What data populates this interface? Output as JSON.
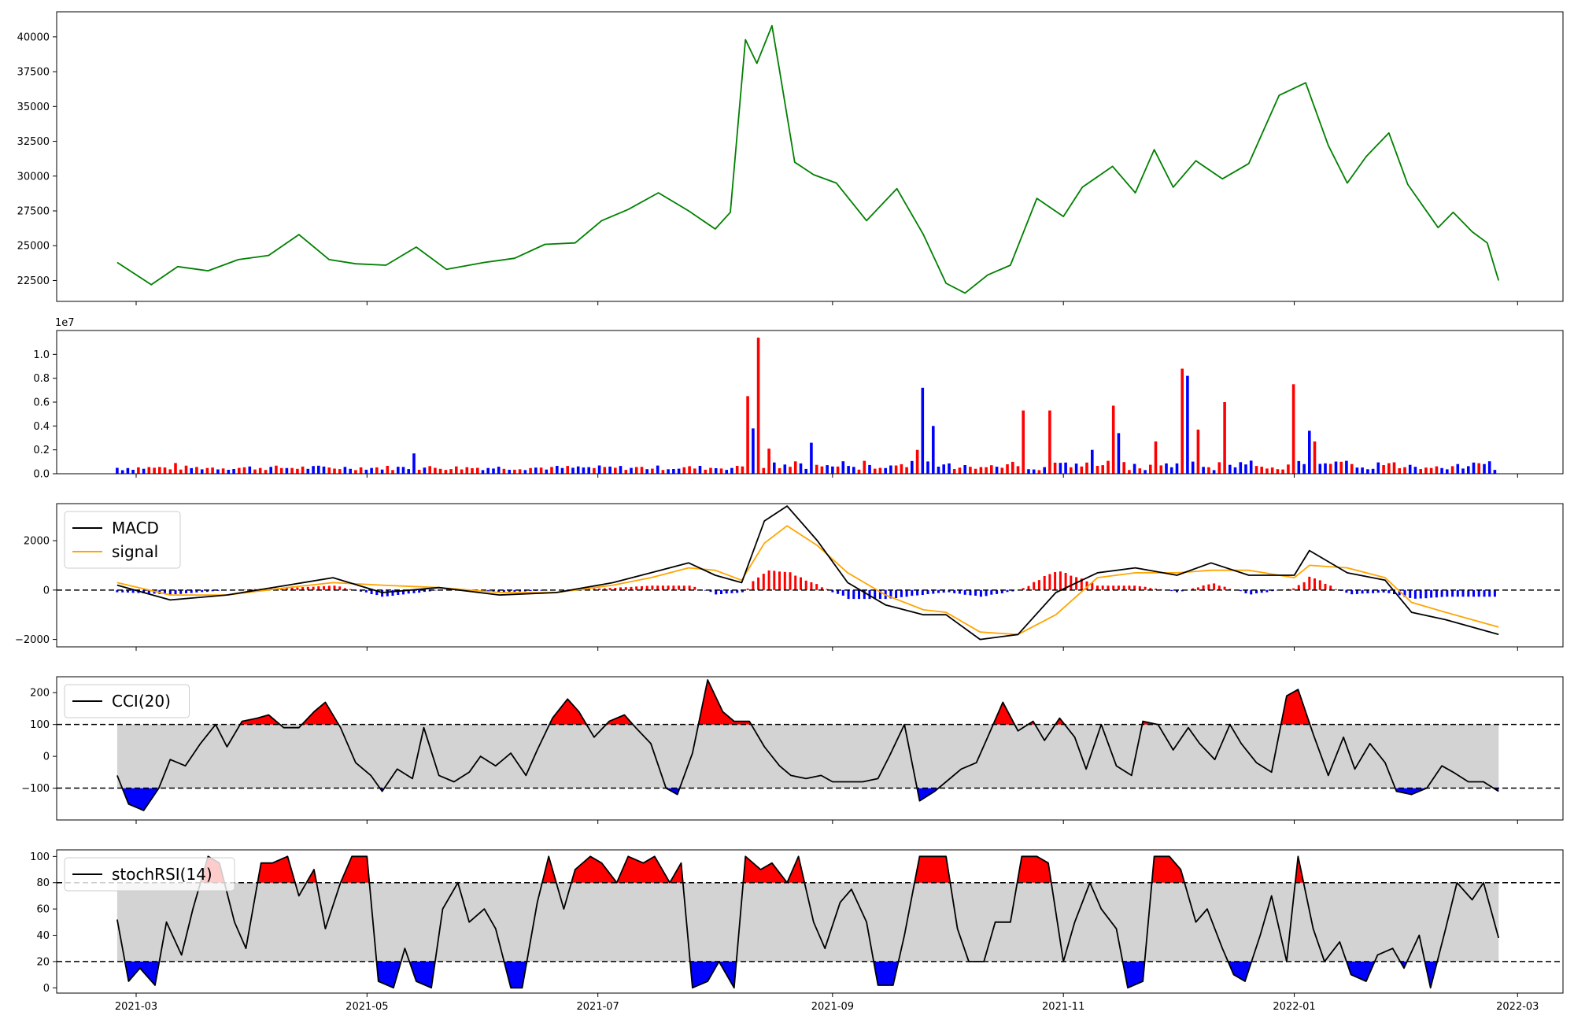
{
  "chart_data": [
    {
      "panel": "price",
      "type": "line",
      "color": "#008000",
      "ylim": [
        21000,
        41800
      ],
      "yticks": [
        22500,
        25000,
        27500,
        30000,
        32500,
        35000,
        37500,
        40000
      ],
      "ytick_labels": [
        "22500",
        "25000",
        "27500",
        "30000",
        "32500",
        "35000",
        "37500",
        "40000"
      ],
      "x": [
        "2021-02-24",
        "2021-03-05",
        "2021-03-12",
        "2021-03-20",
        "2021-03-28",
        "2021-04-05",
        "2021-04-13",
        "2021-04-21",
        "2021-04-28",
        "2021-05-06",
        "2021-05-14",
        "2021-05-22",
        "2021-06-01",
        "2021-06-09",
        "2021-06-17",
        "2021-06-25",
        "2021-07-02",
        "2021-07-09",
        "2021-07-17",
        "2021-07-25",
        "2021-08-01",
        "2021-08-05",
        "2021-08-09",
        "2021-08-12",
        "2021-08-16",
        "2021-08-18",
        "2021-08-22",
        "2021-08-27",
        "2021-09-02",
        "2021-09-10",
        "2021-09-18",
        "2021-09-25",
        "2021-10-01",
        "2021-10-06",
        "2021-10-12",
        "2021-10-18",
        "2021-10-25",
        "2021-11-01",
        "2021-11-06",
        "2021-11-14",
        "2021-11-20",
        "2021-11-25",
        "2021-11-30",
        "2021-12-06",
        "2021-12-13",
        "2021-12-20",
        "2021-12-28",
        "2022-01-04",
        "2022-01-10",
        "2022-01-15",
        "2022-01-20",
        "2022-01-26",
        "2022-01-31",
        "2022-02-08",
        "2022-02-12",
        "2022-02-17",
        "2022-02-21",
        "2022-02-24"
      ],
      "values": [
        23800,
        22200,
        23500,
        23200,
        24000,
        24300,
        25800,
        24000,
        23700,
        23600,
        24900,
        23300,
        23800,
        24100,
        25100,
        25200,
        26800,
        27600,
        28800,
        27500,
        26200,
        27400,
        39800,
        38100,
        40800,
        37600,
        31000,
        30100,
        29500,
        26800,
        29100,
        25800,
        22300,
        21600,
        22900,
        23600,
        28400,
        27100,
        29200,
        30700,
        28800,
        31900,
        29200,
        31100,
        29800,
        30900,
        35800,
        36700,
        32200,
        29500,
        31400,
        33100,
        29400,
        26300,
        27400,
        26000,
        25200,
        22500
      ],
      "legend": []
    },
    {
      "panel": "volume",
      "type": "bar",
      "offset_label": "1e7",
      "ylim": [
        0,
        1.2
      ],
      "yticks": [
        0,
        0.2,
        0.4,
        0.6,
        0.8,
        1.0
      ],
      "ytick_labels": [
        "0.0",
        "0.2",
        "0.4",
        "0.6",
        "0.8",
        "1.0"
      ],
      "up_color": "#ff0000",
      "down_color": "#0000ff",
      "highlights": [
        {
          "x": "2021-02-26",
          "value": 0.03,
          "dir": "down"
        },
        {
          "x": "2021-03-12",
          "value": 0.09,
          "dir": "up"
        },
        {
          "x": "2021-05-13",
          "value": 0.17,
          "dir": "down"
        },
        {
          "x": "2021-08-09",
          "value": 0.65,
          "dir": "up"
        },
        {
          "x": "2021-08-11",
          "value": 0.38,
          "dir": "down"
        },
        {
          "x": "2021-08-13",
          "value": 1.14,
          "dir": "up"
        },
        {
          "x": "2021-08-15",
          "value": 0.21,
          "dir": "up"
        },
        {
          "x": "2021-08-27",
          "value": 0.26,
          "dir": "down"
        },
        {
          "x": "2021-09-23",
          "value": 0.2,
          "dir": "up"
        },
        {
          "x": "2021-09-25",
          "value": 0.72,
          "dir": "down"
        },
        {
          "x": "2021-09-28",
          "value": 0.4,
          "dir": "down"
        },
        {
          "x": "2021-10-22",
          "value": 0.53,
          "dir": "up"
        },
        {
          "x": "2021-10-28",
          "value": 0.53,
          "dir": "up"
        },
        {
          "x": "2021-11-08",
          "value": 0.2,
          "dir": "down"
        },
        {
          "x": "2021-11-14",
          "value": 0.57,
          "dir": "up"
        },
        {
          "x": "2021-11-16",
          "value": 0.34,
          "dir": "down"
        },
        {
          "x": "2021-11-26",
          "value": 0.27,
          "dir": "up"
        },
        {
          "x": "2021-12-02",
          "value": 0.88,
          "dir": "up"
        },
        {
          "x": "2021-12-04",
          "value": 0.82,
          "dir": "down"
        },
        {
          "x": "2021-12-06",
          "value": 0.37,
          "dir": "up"
        },
        {
          "x": "2021-12-14",
          "value": 0.6,
          "dir": "up"
        },
        {
          "x": "2022-01-01",
          "value": 0.75,
          "dir": "up"
        },
        {
          "x": "2022-01-05",
          "value": 0.36,
          "dir": "down"
        },
        {
          "x": "2022-01-07",
          "value": 0.27,
          "dir": "up"
        },
        {
          "x": "2022-02-24",
          "value": 0.04,
          "dir": "down"
        }
      ],
      "legend": []
    },
    {
      "panel": "macd",
      "type": "line",
      "ylim": [
        -2300,
        3500
      ],
      "yticks": [
        -2000,
        0,
        2000
      ],
      "ytick_labels": [
        "−2000",
        "0",
        "2000"
      ],
      "zero_line": 0,
      "x": [
        "2021-02-24",
        "2021-03-10",
        "2021-03-25",
        "2021-04-10",
        "2021-04-22",
        "2021-05-05",
        "2021-05-20",
        "2021-06-05",
        "2021-06-20",
        "2021-07-05",
        "2021-07-15",
        "2021-07-25",
        "2021-08-01",
        "2021-08-08",
        "2021-08-14",
        "2021-08-20",
        "2021-08-28",
        "2021-09-05",
        "2021-09-15",
        "2021-09-25",
        "2021-10-01",
        "2021-10-10",
        "2021-10-20",
        "2021-10-30",
        "2021-11-10",
        "2021-11-20",
        "2021-12-01",
        "2021-12-10",
        "2021-12-20",
        "2022-01-01",
        "2022-01-05",
        "2022-01-15",
        "2022-01-25",
        "2022-02-01",
        "2022-02-10",
        "2022-02-24"
      ],
      "series": [
        {
          "name": "MACD",
          "color": "#000000",
          "values": [
            200,
            -400,
            -200,
            200,
            500,
            -100,
            100,
            -200,
            -100,
            300,
            700,
            1100,
            600,
            300,
            2800,
            3400,
            2000,
            300,
            -600,
            -1000,
            -1000,
            -2000,
            -1800,
            -100,
            700,
            900,
            600,
            1100,
            600,
            600,
            1600,
            700,
            400,
            -900,
            -1200,
            -1800
          ]
        },
        {
          "name": "signal",
          "color": "#ffa500",
          "values": [
            300,
            -200,
            -200,
            100,
            300,
            200,
            100,
            -100,
            -100,
            200,
            500,
            900,
            800,
            400,
            1900,
            2600,
            1800,
            700,
            -200,
            -800,
            -900,
            -1700,
            -1800,
            -1000,
            500,
            700,
            700,
            800,
            800,
            500,
            1000,
            900,
            500,
            -500,
            -900,
            -1500
          ]
        }
      ],
      "legend": [
        "MACD",
        "signal"
      ]
    },
    {
      "panel": "cci",
      "type": "line",
      "ylim": [
        -200,
        250
      ],
      "yticks": [
        -100,
        0,
        100,
        200
      ],
      "ytick_labels": [
        "−100",
        "0",
        "100",
        "200"
      ],
      "band": [
        -100,
        100
      ],
      "series": [
        {
          "name": "CCI(20)",
          "color": "#000000",
          "values": [
            -60,
            -150,
            -170,
            -100,
            -10,
            -30,
            40,
            100,
            30,
            110,
            120,
            130,
            90,
            90,
            140,
            170,
            90,
            -20,
            -60,
            -110,
            -40,
            -70,
            90,
            -60,
            -80,
            -50,
            0,
            -30,
            10,
            -60,
            20,
            120,
            180,
            140,
            60,
            110,
            130,
            90,
            40,
            -100,
            -120,
            10,
            240,
            140,
            110,
            110,
            30,
            -30,
            -60,
            -70,
            -60,
            -80,
            -80,
            -80,
            -70,
            0,
            100,
            -140,
            -110,
            -80,
            -40,
            -20,
            60,
            170,
            80,
            110,
            50,
            120,
            60,
            -40,
            100,
            -30,
            -60,
            110,
            100,
            20,
            90,
            40,
            -10,
            100,
            40,
            -20,
            -50,
            190,
            210,
            70,
            -60,
            60,
            -40,
            40,
            -20,
            -110,
            -120,
            -100,
            -30,
            -50,
            -80,
            -80,
            -110
          ]
        }
      ],
      "legend": [
        "CCI(20)"
      ]
    },
    {
      "panel": "stochrsi",
      "type": "line",
      "ylim": [
        -4,
        105
      ],
      "yticks": [
        0,
        20,
        40,
        60,
        80,
        100
      ],
      "ytick_labels": [
        "0",
        "20",
        "40",
        "60",
        "80",
        "100"
      ],
      "band": [
        20,
        80
      ],
      "series": [
        {
          "name": "stochRSI(14)",
          "color": "#000000",
          "values": [
            52,
            5,
            15,
            2,
            50,
            25,
            60,
            100,
            95,
            50,
            30,
            95,
            95,
            100,
            70,
            90,
            45,
            80,
            100,
            100,
            5,
            0,
            30,
            5,
            0,
            60,
            80,
            50,
            60,
            45,
            0,
            0,
            65,
            100,
            60,
            90,
            100,
            95,
            80,
            100,
            95,
            100,
            80,
            95,
            0,
            5,
            20,
            0,
            100,
            90,
            95,
            80,
            100,
            50,
            30,
            65,
            75,
            50,
            2,
            2,
            40,
            100,
            100,
            100,
            45,
            20,
            20,
            50,
            50,
            100,
            100,
            95,
            20,
            50,
            80,
            60,
            45,
            0,
            5,
            100,
            100,
            90,
            50,
            60,
            30,
            10,
            5,
            40,
            70,
            20,
            100,
            45,
            20,
            35,
            10,
            5,
            25,
            30,
            15,
            40,
            0,
            45,
            80,
            67,
            80,
            38
          ]
        }
      ],
      "legend": [
        "stochRSI(14)"
      ]
    }
  ],
  "x_axis": {
    "range": [
      "2021-02-08",
      "2022-03-13"
    ],
    "ticks": [
      "2021-03-01",
      "2021-05-01",
      "2021-07-01",
      "2021-09-01",
      "2021-11-01",
      "2022-01-01",
      "2022-03-01"
    ],
    "tick_labels": [
      "2021-03",
      "2021-05",
      "2021-07",
      "2021-09",
      "2021-11",
      "2022-01",
      "2022-03"
    ]
  }
}
